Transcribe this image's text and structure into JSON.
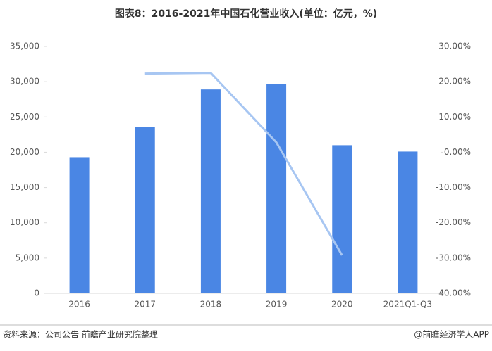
{
  "chart_data": {
    "type": "bar-line",
    "title": "图表8：2016-2021年中国石化营业收入(单位：亿元，%)",
    "categories": [
      "2016",
      "2017",
      "2018",
      "2019",
      "2020",
      "2021Q1-Q3"
    ],
    "series": [
      {
        "type": "bar",
        "color": "#4a86e4",
        "values": [
          19300,
          23600,
          28900,
          29700,
          21000,
          20100
        ]
      },
      {
        "type": "line",
        "axis": "y2",
        "color": "#a7c6f2",
        "values": [
          null,
          22.3,
          22.5,
          2.8,
          -29.2,
          null
        ]
      }
    ],
    "ylim": [
      0,
      35000
    ],
    "yticks": [
      0,
      {
        "value": 5000,
        "label": "5,000"
      },
      {
        "value": 10000,
        "label": "10,000"
      },
      {
        "value": 15000,
        "label": "15,000"
      },
      {
        "value": 20000,
        "label": "20,000"
      },
      {
        "value": 25000,
        "label": "25,000"
      },
      {
        "value": 30000,
        "label": "30,000"
      },
      {
        "value": 35000,
        "label": "35,000"
      }
    ],
    "y2lim": [
      -40,
      30
    ],
    "y2ticks": [
      {
        "value": -40,
        "label": "-40.00%"
      },
      {
        "value": -30,
        "label": "-30.00%"
      },
      {
        "value": -20,
        "label": "-20.00%"
      },
      {
        "value": -10,
        "label": "-10.00%"
      },
      {
        "value": 0,
        "label": "0.00%"
      },
      {
        "value": 10,
        "label": "10.00%"
      },
      {
        "value": 20,
        "label": "20.00%"
      },
      {
        "value": 30,
        "label": "30.00%"
      }
    ],
    "source": "资料来源：公司公告 前瞻产业研究院整理",
    "credit": "@前瞻经济学人APP"
  }
}
